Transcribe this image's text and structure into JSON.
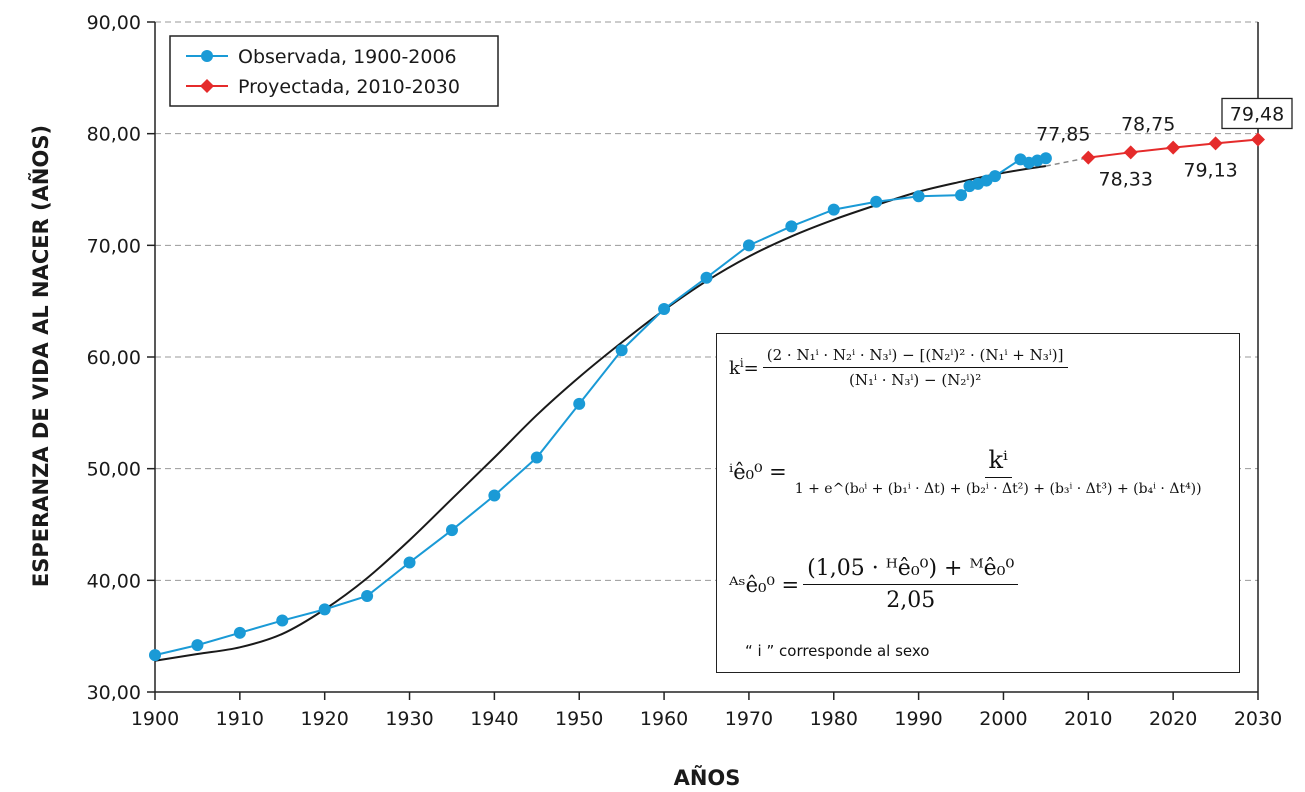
{
  "chart_data": {
    "type": "line",
    "xlabel": "AÑOS",
    "ylabel": "ESPERANZA DE VIDA AL NACER (AÑOS)",
    "xlim": [
      1900,
      2030
    ],
    "ylim": [
      30,
      90
    ],
    "xticks": [
      "1900",
      "1910",
      "1920",
      "1930",
      "1940",
      "1950",
      "1960",
      "1970",
      "1980",
      "1990",
      "2000",
      "2010",
      "2020",
      "2030"
    ],
    "yticks": [
      "30,00",
      "40,00",
      "50,00",
      "60,00",
      "70,00",
      "80,00",
      "90,00"
    ],
    "grid": "horizontal-dashed",
    "legend_position": "top-left",
    "series": [
      {
        "name": "Observada, 1900-2006",
        "color": "#1a9ad6",
        "marker": "circle",
        "x": [
          1900,
          1905,
          1910,
          1915,
          1920,
          1925,
          1930,
          1935,
          1940,
          1945,
          1950,
          1955,
          1960,
          1965,
          1970,
          1975,
          1980,
          1985,
          1990,
          1995,
          1996,
          1997,
          1998,
          1999,
          2002,
          2003,
          2004,
          2005
        ],
        "y": [
          33.3,
          34.2,
          35.3,
          36.4,
          37.4,
          38.6,
          41.6,
          44.5,
          47.6,
          51.0,
          55.8,
          60.6,
          64.3,
          67.1,
          70.0,
          71.7,
          73.2,
          73.9,
          74.4,
          74.5,
          75.3,
          75.5,
          75.8,
          76.2,
          77.7,
          77.4,
          77.6,
          77.8
        ]
      },
      {
        "name": "Proyectada, 2010-2030",
        "color": "#e52b2b",
        "marker": "diamond",
        "x": [
          2010,
          2015,
          2020,
          2025,
          2030
        ],
        "y": [
          77.85,
          78.33,
          78.75,
          79.13,
          79.48
        ]
      }
    ],
    "fit_curve": {
      "color": "#1a1a1a",
      "x": [
        1900,
        1905,
        1910,
        1915,
        1920,
        1925,
        1930,
        1935,
        1940,
        1945,
        1950,
        1955,
        1960,
        1965,
        1970,
        1975,
        1980,
        1985,
        1990,
        1995,
        2000,
        2005
      ],
      "y": [
        32.8,
        33.4,
        34.0,
        35.2,
        37.4,
        40.2,
        43.6,
        47.3,
        51.0,
        54.8,
        58.2,
        61.3,
        64.2,
        66.8,
        69.0,
        70.8,
        72.3,
        73.6,
        74.8,
        75.7,
        76.5,
        77.1
      ]
    },
    "annotations": [
      {
        "text": "77,85",
        "x": 2010,
        "y": 77.85,
        "position": "above"
      },
      {
        "text": "78,33",
        "x": 2015,
        "y": 78.33,
        "position": "below"
      },
      {
        "text": "78,75",
        "x": 2020,
        "y": 78.75,
        "position": "above"
      },
      {
        "text": "79,13",
        "x": 2025,
        "y": 79.13,
        "position": "below"
      },
      {
        "text": "79,48",
        "x": 2030,
        "y": 79.48,
        "position": "above-boxed"
      }
    ]
  },
  "formula": {
    "k_lhs": "k",
    "k_sup": "i",
    "k_num": "(2 · N₁ⁱ · N₂ⁱ · N₃ⁱ) − [(N₂ⁱ)² · (N₁ⁱ + N₃ⁱ)]",
    "k_den": "(N₁ⁱ · N₃ⁱ) − (N₂ⁱ)²",
    "e_lhs": "ⁱê₀⁰ =",
    "e_num": "kⁱ",
    "e_den": "1 + e^(b₀ⁱ + (b₁ⁱ · Δt) + (b₂ⁱ · Δt²) + (b₃ⁱ · Δt³) + (b₄ⁱ · Δt⁴))",
    "as_lhs": "ᴬˢê₀⁰ =",
    "as_num": "(1,05 · ᴴê₀⁰) + ᴹê₀⁰",
    "as_den": "2,05",
    "note": "“ i ” corresponde al sexo"
  }
}
